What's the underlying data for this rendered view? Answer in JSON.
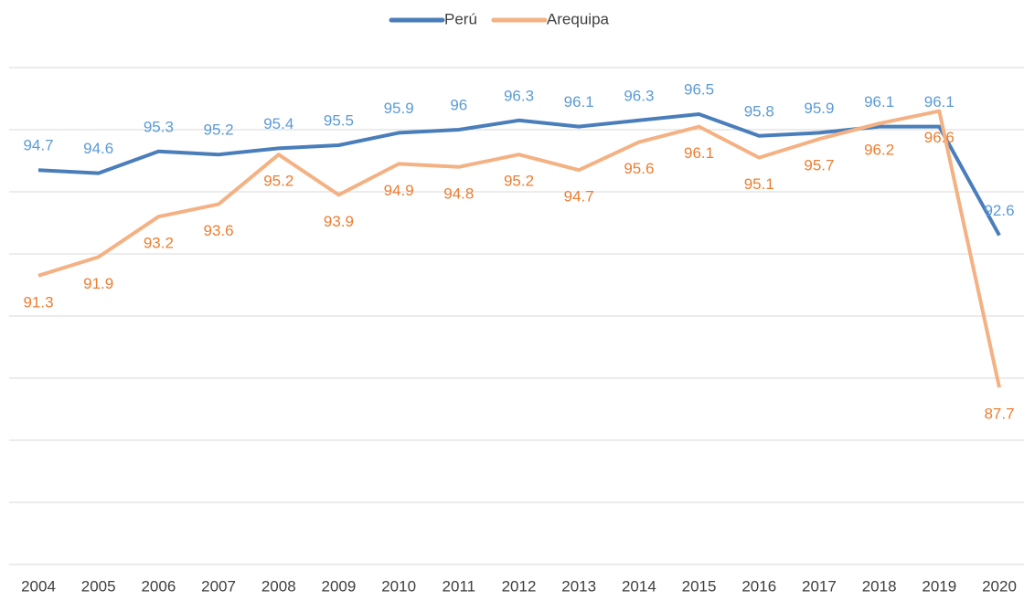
{
  "chart_data": {
    "type": "line",
    "categories": [
      "2004",
      "2005",
      "2006",
      "2007",
      "2008",
      "2009",
      "2010",
      "2011",
      "2012",
      "2013",
      "2014",
      "2015",
      "2016",
      "2017",
      "2018",
      "2019",
      "2020"
    ],
    "series": [
      {
        "name": "Perú",
        "color": "#4a7ebb",
        "label_color": "#5b9bd5",
        "values": [
          94.7,
          94.6,
          95.3,
          95.2,
          95.4,
          95.5,
          95.9,
          96.0,
          96.3,
          96.1,
          96.3,
          96.5,
          95.8,
          95.9,
          96.1,
          96.1,
          92.6
        ]
      },
      {
        "name": "Arequipa",
        "color": "#f4b183",
        "label_color": "#ed7d31",
        "values": [
          91.3,
          91.9,
          93.2,
          93.6,
          95.2,
          93.9,
          94.9,
          94.8,
          95.2,
          94.7,
          95.6,
          96.1,
          95.1,
          95.7,
          96.2,
          96.6,
          87.7
        ]
      }
    ],
    "ylim": [
      82,
      98
    ],
    "yticks": [
      82,
      84,
      86,
      88,
      90,
      92,
      94,
      96,
      98
    ],
    "grid": true,
    "legend": "top"
  }
}
